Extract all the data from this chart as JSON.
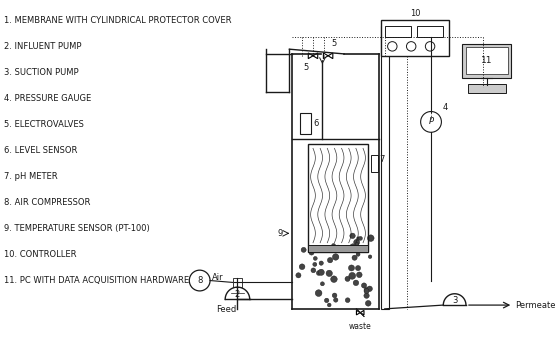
{
  "bg_color": "#ffffff",
  "line_color": "#1a1a1a",
  "gray_light": "#cccccc",
  "gray_mid": "#999999",
  "legend_items": [
    "1. MEMBRANE WITH CYLINDRICAL PROTECTOR COVER",
    "2. INFLUENT PUMP",
    "3. SUCTION PUMP",
    "4. PRESSURE GAUGE",
    "5. ELECTROVALVES",
    "6. LEVEL SENSOR",
    "7. pH METER",
    "8. AIR COMPRESSOR",
    "9. TEMPERATURE SENSOR (PT-100)",
    "10. CONTROLLER",
    "11. PC WITH DATA ACQUISITION HARDWARE"
  ],
  "fs": 6.0
}
